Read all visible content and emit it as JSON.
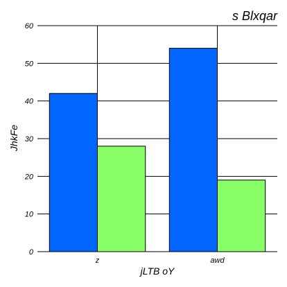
{
  "chart_data": {
    "type": "bar",
    "title": "s Blxqar",
    "xlabel": "jLTB oY",
    "ylabel": "JhkFe",
    "categories": [
      "z",
      "awd"
    ],
    "series": [
      {
        "color": "#0066ff",
        "values": [
          42,
          54
        ]
      },
      {
        "color": "#88ff66",
        "values": [
          28,
          19
        ]
      }
    ],
    "ylim": [
      0,
      60
    ],
    "yticks": [
      0,
      10,
      20,
      30,
      40,
      50,
      60
    ],
    "grid": true,
    "legend": "none"
  }
}
